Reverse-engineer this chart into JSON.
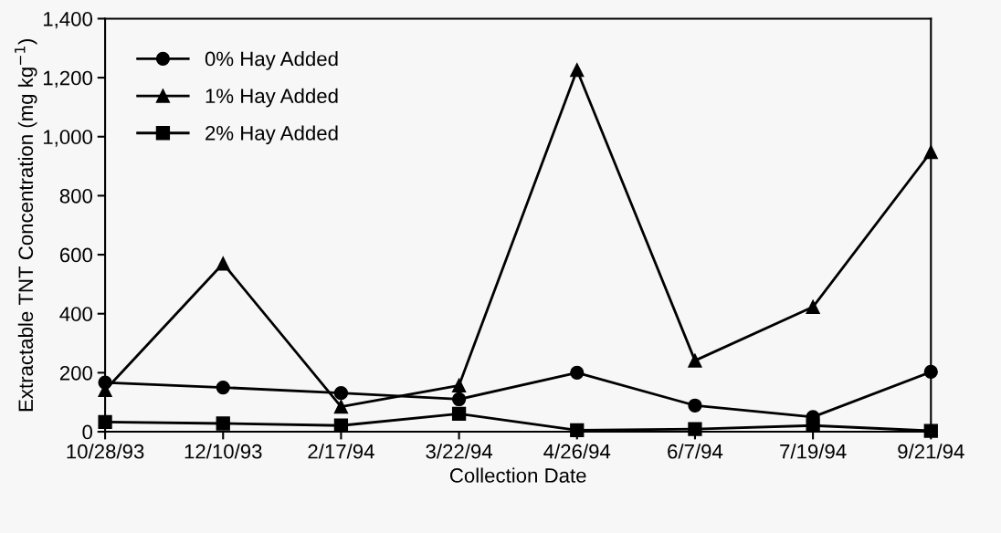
{
  "chart_data": {
    "type": "line",
    "xlabel": "Collection Date",
    "ylabel": "Extractable TNT Concentration (mg kg$^{−1}$)",
    "categories": [
      "10/28/93",
      "12/10/93",
      "2/17/94",
      "3/22/94",
      "4/26/94",
      "6/7/94",
      "7/19/94",
      "9/21/94"
    ],
    "series": [
      {
        "name": "0% Hay Added",
        "color": "#000000",
        "marker": "circle",
        "values": [
          167,
          150,
          131,
          110,
          200,
          89,
          50,
          203
        ]
      },
      {
        "name": "1% Hay Added",
        "color": "#000000",
        "marker": "triangle",
        "values": [
          141,
          570,
          85,
          157,
          1226,
          241,
          423,
          948
        ]
      },
      {
        "name": "2% Hay Added",
        "color": "#000000",
        "marker": "square",
        "values": [
          33,
          28,
          21,
          61,
          5,
          9,
          21,
          3
        ]
      }
    ],
    "ylim": [
      0,
      1400
    ],
    "yticks": [
      {
        "value": 0,
        "label": "0"
      },
      {
        "value": 200,
        "label": "200"
      },
      {
        "value": 400,
        "label": "400"
      },
      {
        "value": 600,
        "label": "600"
      },
      {
        "value": 800,
        "label": "800"
      },
      {
        "value": 1000,
        "label": "1,000"
      },
      {
        "value": 1200,
        "label": "1,200"
      },
      {
        "value": 1400,
        "label": "1,400"
      }
    ],
    "legend": "top left",
    "grid": false,
    "line_style": "solid"
  }
}
